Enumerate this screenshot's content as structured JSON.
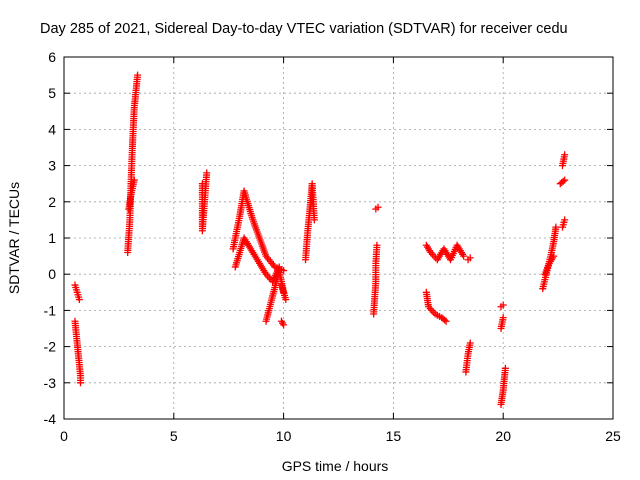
{
  "chart_data": {
    "type": "scatter",
    "title": "Day 285 of 2021, Sidereal Day-to-day VTEC variation (SDTVAR) for receiver cedu",
    "xlabel": "GPS time / hours",
    "ylabel": "SDTVAR / TECUs",
    "xlim": [
      0,
      25
    ],
    "ylim": [
      -4,
      6
    ],
    "xticks": [
      0,
      5,
      10,
      15,
      20,
      25
    ],
    "yticks": [
      -4,
      -3,
      -2,
      -1,
      0,
      1,
      2,
      3,
      4,
      5,
      6
    ],
    "grid": true,
    "marker": "+",
    "color": "#ff0000",
    "segments": [
      [
        [
          0.5,
          -0.3
        ],
        [
          0.6,
          -0.5
        ],
        [
          0.7,
          -0.7
        ]
      ],
      [
        [
          0.5,
          -1.3
        ],
        [
          0.55,
          -1.6
        ],
        [
          0.6,
          -1.9
        ],
        [
          0.65,
          -2.2
        ],
        [
          0.7,
          -2.5
        ],
        [
          0.75,
          -2.8
        ],
        [
          0.75,
          -3.0
        ]
      ],
      [
        [
          2.9,
          0.6
        ],
        [
          3.0,
          1.5
        ],
        [
          3.05,
          2.5
        ],
        [
          3.1,
          3.3
        ],
        [
          3.15,
          4.0
        ],
        [
          3.2,
          4.6
        ],
        [
          3.3,
          5.2
        ],
        [
          3.35,
          5.5
        ]
      ],
      [
        [
          2.95,
          1.8
        ],
        [
          3.05,
          2.2
        ],
        [
          3.2,
          2.6
        ]
      ],
      [
        [
          6.3,
          2.5
        ],
        [
          6.3,
          1.2
        ],
        [
          6.5,
          2.8
        ]
      ],
      [
        [
          7.7,
          0.7
        ],
        [
          8.0,
          1.6
        ],
        [
          8.2,
          2.3
        ],
        [
          8.6,
          1.5
        ],
        [
          8.9,
          1.0
        ],
        [
          9.2,
          0.5
        ],
        [
          9.6,
          0.2
        ],
        [
          10.0,
          0.1
        ]
      ],
      [
        [
          7.8,
          0.2
        ],
        [
          8.2,
          1.0
        ],
        [
          8.5,
          0.7
        ],
        [
          8.9,
          0.3
        ],
        [
          9.2,
          0.0
        ],
        [
          9.5,
          -0.2
        ],
        [
          9.8,
          0.2
        ]
      ],
      [
        [
          9.2,
          -1.3
        ],
        [
          9.5,
          -0.6
        ],
        [
          9.8,
          0.1
        ],
        [
          10.0,
          -0.5
        ]
      ],
      [
        [
          9.9,
          -1.3
        ],
        [
          10.0,
          -1.4
        ]
      ],
      [
        [
          10.1,
          -0.7
        ],
        [
          9.9,
          -0.3
        ]
      ],
      [
        [
          11.0,
          0.4
        ],
        [
          11.1,
          1.2
        ],
        [
          11.2,
          1.8
        ],
        [
          11.3,
          2.5
        ],
        [
          11.4,
          1.5
        ]
      ],
      [
        [
          14.1,
          -1.1
        ],
        [
          14.2,
          -0.2
        ],
        [
          14.2,
          0.3
        ],
        [
          14.25,
          0.8
        ]
      ],
      [
        [
          14.2,
          1.8
        ],
        [
          14.3,
          1.85
        ]
      ],
      [
        [
          16.5,
          0.8
        ],
        [
          16.7,
          0.6
        ],
        [
          17.0,
          0.4
        ],
        [
          17.3,
          0.7
        ],
        [
          17.6,
          0.4
        ],
        [
          17.9,
          0.8
        ],
        [
          18.2,
          0.5
        ]
      ],
      [
        [
          16.5,
          -0.5
        ],
        [
          16.6,
          -0.9
        ],
        [
          16.9,
          -1.1
        ],
        [
          17.2,
          -1.2
        ],
        [
          17.4,
          -1.3
        ]
      ],
      [
        [
          18.3,
          -2.7
        ],
        [
          18.4,
          -2.2
        ],
        [
          18.5,
          -1.9
        ]
      ],
      [
        [
          18.4,
          0.4
        ],
        [
          18.5,
          0.45
        ]
      ],
      [
        [
          19.9,
          -0.9
        ],
        [
          20.0,
          -0.85
        ]
      ],
      [
        [
          19.9,
          -3.6
        ],
        [
          20.0,
          -3.2
        ],
        [
          20.1,
          -2.6
        ]
      ],
      [
        [
          19.9,
          -1.5
        ],
        [
          20.0,
          -1.2
        ]
      ],
      [
        [
          21.8,
          -0.4
        ],
        [
          22.0,
          0.1
        ],
        [
          22.2,
          0.6
        ],
        [
          22.3,
          0.9
        ],
        [
          22.4,
          1.3
        ]
      ],
      [
        [
          21.9,
          0.0
        ],
        [
          22.1,
          0.3
        ],
        [
          22.3,
          0.5
        ]
      ],
      [
        [
          22.7,
          1.3
        ],
        [
          22.8,
          1.5
        ]
      ],
      [
        [
          22.6,
          2.5
        ],
        [
          22.8,
          2.6
        ]
      ],
      [
        [
          22.7,
          3.0
        ],
        [
          22.8,
          3.3
        ]
      ]
    ]
  }
}
